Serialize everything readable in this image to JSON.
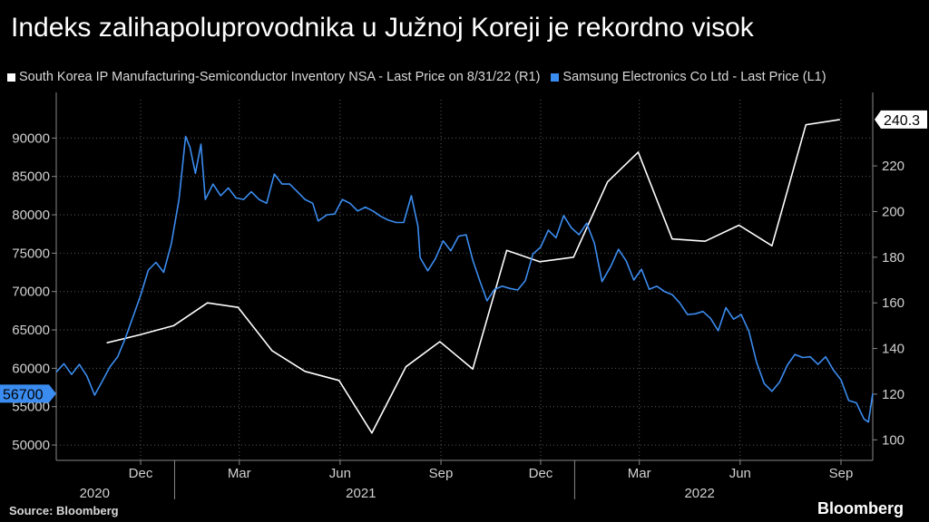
{
  "header": {
    "title": "Indeks zalihapoluprovodnika u Južnoj Koreji je rekordno visok"
  },
  "legend": {
    "items": [
      "South Korea IP Manufacturing-Semiconductor Inventory NSA - Last Price on 8/31/22 (R1)",
      "Samsung Electronics Co Ltd - Last Price (L1)"
    ]
  },
  "footer": {
    "source": "Source: Bloomberg",
    "brand": "Bloomberg"
  },
  "colors": {
    "background": "#000000",
    "inventory": "#ffffff",
    "samsung": "#3b8cf0",
    "grid": "#5a5a5a"
  },
  "chart_data": {
    "type": "line",
    "title": "Indeks zalihapoluprovodnika u Južnoj Koreji je rekordno visok",
    "xlabel": "",
    "ylabel": "",
    "x_ticks": [
      {
        "label": "Dec",
        "date": "2020-12-01"
      },
      {
        "label": "Mar",
        "date": "2021-03-01"
      },
      {
        "label": "Jun",
        "date": "2021-06-01"
      },
      {
        "label": "Sep",
        "date": "2021-09-01"
      },
      {
        "label": "Dec",
        "date": "2021-12-01"
      },
      {
        "label": "Mar",
        "date": "2022-03-01"
      },
      {
        "label": "Jun",
        "date": "2022-06-01"
      },
      {
        "label": "Sep",
        "date": "2022-09-01"
      }
    ],
    "year_labels": [
      {
        "label": "2020",
        "date": "2020-10-20"
      },
      {
        "label": "2021",
        "date": "2021-06-20"
      },
      {
        "label": "2022",
        "date": "2022-04-25"
      }
    ],
    "x_range": [
      "2020-09-15",
      "2022-09-30"
    ],
    "y_left": {
      "min": 48000,
      "max": 95000,
      "ticks": [
        50000,
        55000,
        60000,
        65000,
        70000,
        75000,
        80000,
        85000,
        90000
      ]
    },
    "y_right": {
      "min": 91,
      "max": 249,
      "ticks": [
        100,
        120,
        140,
        160,
        180,
        200,
        220
      ]
    },
    "grid": true,
    "legend_position": "top-left",
    "series": [
      {
        "name": "South Korea IP Manufacturing-Semiconductor Inventory NSA - Last Price on 8/31/22 (R1)",
        "axis": "right",
        "last_label": "240.3",
        "points": [
          [
            "2020-10-31",
            142.5
          ],
          [
            "2020-11-30",
            146
          ],
          [
            "2020-12-31",
            150
          ],
          [
            "2021-01-31",
            160
          ],
          [
            "2021-02-28",
            158
          ],
          [
            "2021-03-31",
            139
          ],
          [
            "2021-04-30",
            130
          ],
          [
            "2021-05-31",
            126
          ],
          [
            "2021-06-30",
            103
          ],
          [
            "2021-07-31",
            132
          ],
          [
            "2021-08-31",
            143
          ],
          [
            "2021-09-30",
            131
          ],
          [
            "2021-10-31",
            183
          ],
          [
            "2021-11-30",
            178
          ],
          [
            "2021-12-31",
            180
          ],
          [
            "2022-01-31",
            213
          ],
          [
            "2022-02-28",
            226
          ],
          [
            "2022-03-31",
            188
          ],
          [
            "2022-04-30",
            187
          ],
          [
            "2022-05-31",
            194
          ],
          [
            "2022-06-30",
            185
          ],
          [
            "2022-07-31",
            238
          ],
          [
            "2022-08-31",
            240.3
          ]
        ]
      },
      {
        "name": "Samsung Electronics Co Ltd - Last Price (L1)",
        "axis": "left",
        "last_label": "56700",
        "points": [
          [
            "2020-09-15",
            59500
          ],
          [
            "2020-09-22",
            60600
          ],
          [
            "2020-09-29",
            59200
          ],
          [
            "2020-10-06",
            60500
          ],
          [
            "2020-10-13",
            59000
          ],
          [
            "2020-10-20",
            56500
          ],
          [
            "2020-10-27",
            58300
          ],
          [
            "2020-11-03",
            60200
          ],
          [
            "2020-11-10",
            61500
          ],
          [
            "2020-11-17",
            63900
          ],
          [
            "2020-11-24",
            66700
          ],
          [
            "2020-12-01",
            69500
          ],
          [
            "2020-12-08",
            72800
          ],
          [
            "2020-12-15",
            73800
          ],
          [
            "2020-12-22",
            72500
          ],
          [
            "2020-12-29",
            76200
          ],
          [
            "2021-01-05",
            82000
          ],
          [
            "2021-01-11",
            90200
          ],
          [
            "2021-01-15",
            88800
          ],
          [
            "2021-01-20",
            85400
          ],
          [
            "2021-01-25",
            89200
          ],
          [
            "2021-01-29",
            82000
          ],
          [
            "2021-02-05",
            84000
          ],
          [
            "2021-02-12",
            82500
          ],
          [
            "2021-02-19",
            83500
          ],
          [
            "2021-02-26",
            82200
          ],
          [
            "2021-03-05",
            82000
          ],
          [
            "2021-03-12",
            83000
          ],
          [
            "2021-03-19",
            82000
          ],
          [
            "2021-03-26",
            81500
          ],
          [
            "2021-04-02",
            85300
          ],
          [
            "2021-04-09",
            84000
          ],
          [
            "2021-04-16",
            84000
          ],
          [
            "2021-04-23",
            83000
          ],
          [
            "2021-04-30",
            82000
          ],
          [
            "2021-05-07",
            81500
          ],
          [
            "2021-05-12",
            79200
          ],
          [
            "2021-05-20",
            80000
          ],
          [
            "2021-05-27",
            80100
          ],
          [
            "2021-06-03",
            82000
          ],
          [
            "2021-06-10",
            81500
          ],
          [
            "2021-06-17",
            80500
          ],
          [
            "2021-06-24",
            81000
          ],
          [
            "2021-07-01",
            80500
          ],
          [
            "2021-07-08",
            79800
          ],
          [
            "2021-07-15",
            79300
          ],
          [
            "2021-07-22",
            79000
          ],
          [
            "2021-07-29",
            79000
          ],
          [
            "2021-08-05",
            82500
          ],
          [
            "2021-08-11",
            78500
          ],
          [
            "2021-08-13",
            74400
          ],
          [
            "2021-08-20",
            72700
          ],
          [
            "2021-08-27",
            74300
          ],
          [
            "2021-09-03",
            76600
          ],
          [
            "2021-09-10",
            75300
          ],
          [
            "2021-09-17",
            77200
          ],
          [
            "2021-09-24",
            77400
          ],
          [
            "2021-09-30",
            74100
          ],
          [
            "2021-10-06",
            71600
          ],
          [
            "2021-10-13",
            68800
          ],
          [
            "2021-10-20",
            70300
          ],
          [
            "2021-10-27",
            70700
          ],
          [
            "2021-11-03",
            70400
          ],
          [
            "2021-11-10",
            70200
          ],
          [
            "2021-11-17",
            71400
          ],
          [
            "2021-11-24",
            74900
          ],
          [
            "2021-12-01",
            75800
          ],
          [
            "2021-12-08",
            78000
          ],
          [
            "2021-12-15",
            77000
          ],
          [
            "2021-12-22",
            79900
          ],
          [
            "2021-12-29",
            78300
          ],
          [
            "2022-01-05",
            77400
          ],
          [
            "2022-01-12",
            78900
          ],
          [
            "2022-01-19",
            76300
          ],
          [
            "2022-01-26",
            71300
          ],
          [
            "2022-02-03",
            73300
          ],
          [
            "2022-02-10",
            75500
          ],
          [
            "2022-02-17",
            74000
          ],
          [
            "2022-02-24",
            71500
          ],
          [
            "2022-03-03",
            72900
          ],
          [
            "2022-03-10",
            70300
          ],
          [
            "2022-03-17",
            70700
          ],
          [
            "2022-03-24",
            70000
          ],
          [
            "2022-03-31",
            69600
          ],
          [
            "2022-04-07",
            68500
          ],
          [
            "2022-04-14",
            67000
          ],
          [
            "2022-04-21",
            67100
          ],
          [
            "2022-04-28",
            67400
          ],
          [
            "2022-05-05",
            66500
          ],
          [
            "2022-05-12",
            64900
          ],
          [
            "2022-05-19",
            67900
          ],
          [
            "2022-05-26",
            66400
          ],
          [
            "2022-06-02",
            67000
          ],
          [
            "2022-06-09",
            64800
          ],
          [
            "2022-06-16",
            60800
          ],
          [
            "2022-06-23",
            58000
          ],
          [
            "2022-06-30",
            57000
          ],
          [
            "2022-07-07",
            58200
          ],
          [
            "2022-07-14",
            60400
          ],
          [
            "2022-07-21",
            61800
          ],
          [
            "2022-07-28",
            61400
          ],
          [
            "2022-08-04",
            61500
          ],
          [
            "2022-08-11",
            60500
          ],
          [
            "2022-08-18",
            61500
          ],
          [
            "2022-08-25",
            59800
          ],
          [
            "2022-09-01",
            58500
          ],
          [
            "2022-09-08",
            55800
          ],
          [
            "2022-09-15",
            55500
          ],
          [
            "2022-09-22",
            53400
          ],
          [
            "2022-09-26",
            53000
          ],
          [
            "2022-09-30",
            56700
          ]
        ]
      }
    ]
  }
}
